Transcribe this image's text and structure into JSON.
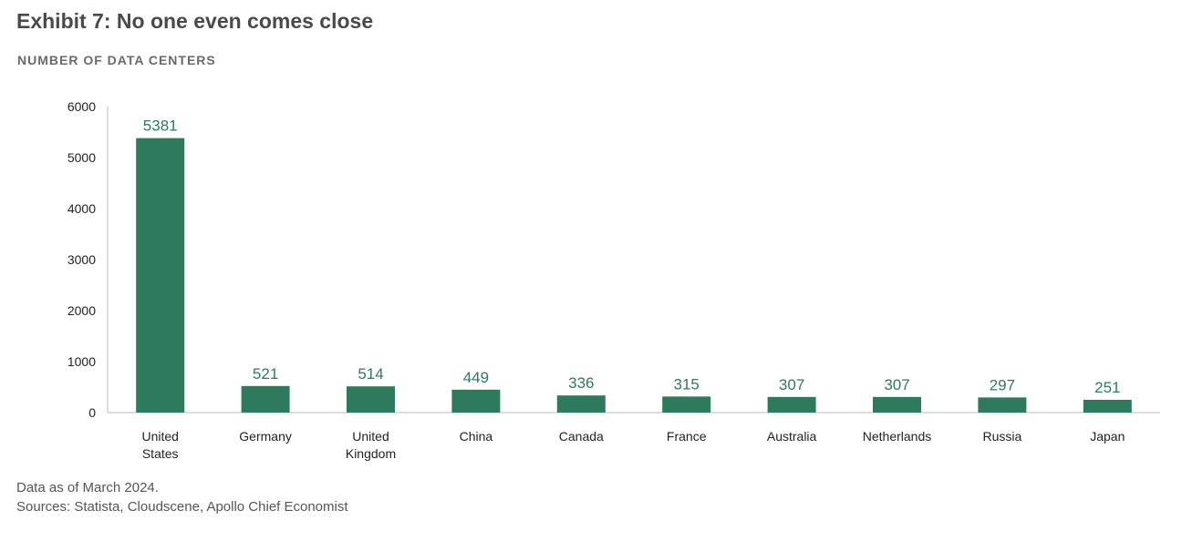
{
  "title": "Exhibit 7: No one even comes close",
  "subtitle": "NUMBER OF DATA CENTERS",
  "footnotes": {
    "note": "Data as of March 2024.",
    "sources": "Sources: Statista, Cloudscene, Apollo Chief Economist"
  },
  "colors": {
    "bar": "#2e7a5c",
    "label": "#2e7a5c",
    "axis": "#bbbbbb",
    "tick": "#222222"
  },
  "chart_data": {
    "type": "bar",
    "categories": [
      [
        "United",
        "States"
      ],
      [
        "Germany"
      ],
      [
        "United",
        "Kingdom"
      ],
      [
        "China"
      ],
      [
        "Canada"
      ],
      [
        "France"
      ],
      [
        "Australia"
      ],
      [
        "Netherlands"
      ],
      [
        "Russia"
      ],
      [
        "Japan"
      ]
    ],
    "values": [
      5381,
      521,
      514,
      449,
      336,
      315,
      307,
      307,
      297,
      251
    ],
    "ylim": [
      0,
      6000
    ],
    "yticks": [
      0,
      1000,
      2000,
      3000,
      4000,
      5000,
      6000
    ],
    "xlabel": "",
    "ylabel": "",
    "data_labels": true,
    "grid": false,
    "legend": "none"
  }
}
